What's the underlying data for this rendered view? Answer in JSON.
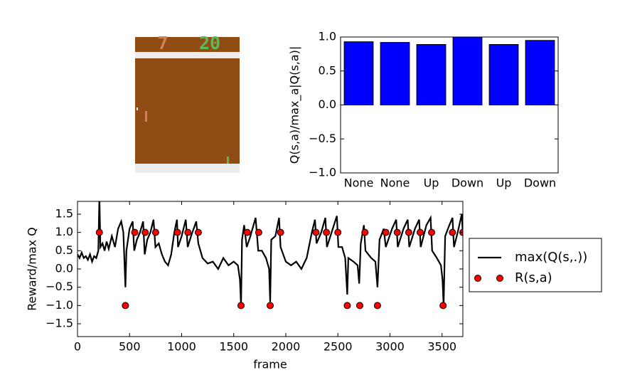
{
  "game_frame": {
    "left_score": "7",
    "right_score": "20"
  },
  "chart_data": [
    {
      "type": "bar",
      "ylabel": "Q(s,a)/max_a|Q(s,a)|",
      "categories": [
        "None",
        "None",
        "Up",
        "Down",
        "Up",
        "Down"
      ],
      "values": [
        0.93,
        0.92,
        0.89,
        1.0,
        0.89,
        0.95
      ],
      "color": "#0000ff",
      "ylim": [
        -1,
        1
      ],
      "yticks": [
        {
          "value": -1,
          "label": "−1.0"
        },
        {
          "value": -0.5,
          "label": "−0.5"
        },
        {
          "value": 0,
          "label": "0.0"
        },
        {
          "value": 0.5,
          "label": "0.5"
        },
        {
          "value": 1,
          "label": "1.0"
        }
      ]
    },
    {
      "type": "line",
      "xlabel": "frame",
      "ylabel": "Reward/max Q",
      "xlim": [
        0,
        3700
      ],
      "ylim": [
        -1.85,
        1.85
      ],
      "xticks": [
        0,
        500,
        1000,
        1500,
        2000,
        2500,
        3000,
        3500
      ],
      "yticks": [
        {
          "value": -1.5,
          "label": "−1.5"
        },
        {
          "value": -1,
          "label": "−1.0"
        },
        {
          "value": -0.5,
          "label": "−0.5"
        },
        {
          "value": 0,
          "label": "0.0"
        },
        {
          "value": 0.5,
          "label": "0.5"
        },
        {
          "value": 1,
          "label": "1.0"
        },
        {
          "value": 1.5,
          "label": "1.5"
        }
      ],
      "legend": "right",
      "series": [
        {
          "name": "max(Q(s,.))",
          "type": "line",
          "color": "#000000",
          "x": [
            0,
            20,
            40,
            60,
            80,
            100,
            120,
            140,
            160,
            180,
            200,
            210,
            220,
            240,
            260,
            280,
            300,
            330,
            360,
            390,
            420,
            440,
            460,
            470,
            500,
            530,
            545,
            570,
            600,
            630,
            645,
            670,
            700,
            730,
            748,
            780,
            810,
            840,
            870,
            900,
            930,
            955,
            965,
            1000,
            1040,
            1058,
            1090,
            1140,
            1160,
            1200,
            1250,
            1300,
            1350,
            1400,
            1450,
            1500,
            1540,
            1560,
            1570,
            1580,
            1600,
            1625,
            1660,
            1710,
            1735,
            1770,
            1810,
            1840,
            1850,
            1860,
            1900,
            1935,
            1950,
            2000,
            2050,
            2100,
            2150,
            2200,
            2250,
            2280,
            2295,
            2340,
            2380,
            2395,
            2440,
            2490,
            2505,
            2540,
            2570,
            2590,
            2600,
            2650,
            2690,
            2705,
            2720,
            2750,
            2765,
            2820,
            2860,
            2880,
            2900,
            2940,
            2960,
            3020,
            3060,
            3075,
            3130,
            3170,
            3185,
            3240,
            3280,
            3295,
            3350,
            3390,
            3405,
            3450,
            3490,
            3505,
            3515,
            3530,
            3570,
            3600,
            3615,
            3650,
            3690,
            3700
          ],
          "values": [
            0.4,
            0.3,
            0.45,
            0.3,
            0.35,
            0.25,
            0.4,
            0.2,
            0.35,
            0.3,
            0.5,
            2.0,
            0.6,
            0.7,
            0.5,
            0.75,
            0.55,
            0.9,
            0.6,
            1.1,
            1.3,
            1.0,
            -0.5,
            0.5,
            1.1,
            1.3,
            0.5,
            0.8,
            1.0,
            1.3,
            0.4,
            0.8,
            1.0,
            1.35,
            0.6,
            0.7,
            0.4,
            0.2,
            0.1,
            0.4,
            1.0,
            1.35,
            0.6,
            0.9,
            1.35,
            0.6,
            0.9,
            1.3,
            0.7,
            0.3,
            0.15,
            0.2,
            0.0,
            0.3,
            0.1,
            0.2,
            0.1,
            -0.3,
            -1.0,
            0.8,
            1.2,
            0.6,
            0.9,
            1.4,
            0.5,
            0.5,
            0.3,
            0.0,
            -0.9,
            0.8,
            0.9,
            1.4,
            0.6,
            0.2,
            0.1,
            0.2,
            0.0,
            0.3,
            1.0,
            1.35,
            0.7,
            1.0,
            1.4,
            0.6,
            1.0,
            1.45,
            0.6,
            0.6,
            0.3,
            -0.7,
            0.3,
            0.2,
            0.1,
            -0.4,
            0.7,
            1.2,
            0.5,
            0.3,
            0.2,
            -0.5,
            0.8,
            1.1,
            0.6,
            1.1,
            1.35,
            0.6,
            1.1,
            1.35,
            0.6,
            1.1,
            1.35,
            0.6,
            1.2,
            1.4,
            0.5,
            0.3,
            0.1,
            -0.3,
            -1.0,
            0.9,
            1.2,
            1.4,
            0.6,
            1.0,
            1.5,
            0.9
          ]
        },
        {
          "name": "R(s,a)",
          "type": "scatter",
          "color": "#ff0000",
          "x": [
            210,
            460,
            550,
            650,
            750,
            960,
            1060,
            1160,
            1570,
            1630,
            1740,
            1850,
            1950,
            2290,
            2390,
            2500,
            2590,
            2710,
            2760,
            2880,
            2960,
            3070,
            3180,
            3290,
            3400,
            3510,
            3600,
            3700
          ],
          "values": [
            1,
            -1,
            1,
            1,
            1,
            1,
            1,
            1,
            -1,
            1,
            1,
            -1,
            1,
            1,
            1,
            1,
            -1,
            -1,
            1,
            -1,
            1,
            1,
            1,
            1,
            1,
            -1,
            1,
            1
          ]
        }
      ]
    }
  ]
}
